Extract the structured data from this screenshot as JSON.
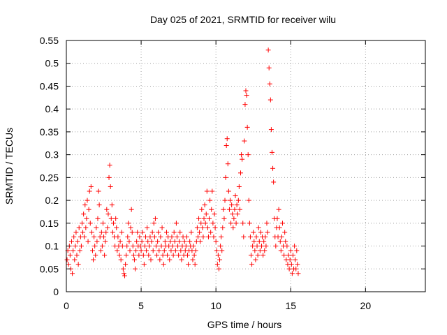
{
  "chart_data": {
    "type": "scatter",
    "title": "Day 025 of 2021, SRMTID for receiver wilu",
    "xlabel": "GPS time / hours",
    "ylabel": "SRMTID / TECUs",
    "xlim": [
      0,
      24
    ],
    "ylim": [
      0,
      0.55
    ],
    "xticks": [
      0,
      5,
      10,
      15,
      20
    ],
    "xtick_labels": [
      "0",
      "5",
      "10",
      "15",
      "20"
    ],
    "yticks": [
      0,
      0.05,
      0.1,
      0.15,
      0.2,
      0.25,
      0.3,
      0.35,
      0.4,
      0.45,
      0.5,
      0.55
    ],
    "ytick_labels": [
      "0",
      "0.05",
      "0.1",
      "0.15",
      "0.2",
      "0.25",
      "0.3",
      "0.35",
      "0.4",
      "0.45",
      "0.5",
      "0.55"
    ],
    "grid": true,
    "marker": "plus",
    "marker_color": "#ff0000",
    "series": [
      {
        "name": "SRMTID",
        "points": [
          [
            0.05,
            0.07
          ],
          [
            0.1,
            0.09
          ],
          [
            0.15,
            0.06
          ],
          [
            0.2,
            0.1
          ],
          [
            0.25,
            0.08
          ],
          [
            0.3,
            0.05
          ],
          [
            0.35,
            0.11
          ],
          [
            0.4,
            0.04
          ],
          [
            0.45,
            0.09
          ],
          [
            0.5,
            0.12
          ],
          [
            0.55,
            0.07
          ],
          [
            0.6,
            0.1
          ],
          [
            0.65,
            0.13
          ],
          [
            0.7,
            0.08
          ],
          [
            0.75,
            0.11
          ],
          [
            0.8,
            0.06
          ],
          [
            0.85,
            0.14
          ],
          [
            0.9,
            0.09
          ],
          [
            0.95,
            0.12
          ],
          [
            1.0,
            0.1
          ],
          [
            1.05,
            0.15
          ],
          [
            1.1,
            0.13
          ],
          [
            1.15,
            0.17
          ],
          [
            1.2,
            0.12
          ],
          [
            1.25,
            0.19
          ],
          [
            1.3,
            0.14
          ],
          [
            1.35,
            0.16
          ],
          [
            1.4,
            0.2
          ],
          [
            1.45,
            0.11
          ],
          [
            1.5,
            0.18
          ],
          [
            1.55,
            0.22
          ],
          [
            1.6,
            0.15
          ],
          [
            1.65,
            0.23
          ],
          [
            1.7,
            0.13
          ],
          [
            1.75,
            0.09
          ],
          [
            1.8,
            0.07
          ],
          [
            1.85,
            0.12
          ],
          [
            1.9,
            0.1
          ],
          [
            1.95,
            0.08
          ],
          [
            2.0,
            0.14
          ],
          [
            2.05,
            0.11
          ],
          [
            2.1,
            0.16
          ],
          [
            2.15,
            0.22
          ],
          [
            2.2,
            0.19
          ],
          [
            2.25,
            0.12
          ],
          [
            2.3,
            0.09
          ],
          [
            2.35,
            0.13
          ],
          [
            2.4,
            0.1
          ],
          [
            2.45,
            0.15
          ],
          [
            2.5,
            0.12
          ],
          [
            2.55,
            0.08
          ],
          [
            2.6,
            0.11
          ],
          [
            2.65,
            0.13
          ],
          [
            2.7,
            0.18
          ],
          [
            2.75,
            0.14
          ],
          [
            2.8,
            0.17
          ],
          [
            2.85,
            0.25
          ],
          [
            2.9,
            0.277
          ],
          [
            2.95,
            0.23
          ],
          [
            3.0,
            0.16
          ],
          [
            3.05,
            0.19
          ],
          [
            3.1,
            0.13
          ],
          [
            3.15,
            0.15
          ],
          [
            3.2,
            0.12
          ],
          [
            3.25,
            0.1
          ],
          [
            3.3,
            0.16
          ],
          [
            3.35,
            0.14
          ],
          [
            3.4,
            0.09
          ],
          [
            3.45,
            0.12
          ],
          [
            3.5,
            0.1
          ],
          [
            3.55,
            0.08
          ],
          [
            3.6,
            0.11
          ],
          [
            3.65,
            0.07
          ],
          [
            3.7,
            0.13
          ],
          [
            3.75,
            0.1
          ],
          [
            3.8,
            0.05
          ],
          [
            3.85,
            0.04
          ],
          [
            3.9,
            0.035
          ],
          [
            3.95,
            0.06
          ],
          [
            4.0,
            0.08
          ],
          [
            4.05,
            0.1
          ],
          [
            4.1,
            0.12
          ],
          [
            4.15,
            0.15
          ],
          [
            4.2,
            0.11
          ],
          [
            4.25,
            0.09
          ],
          [
            4.3,
            0.14
          ],
          [
            4.35,
            0.18
          ],
          [
            4.4,
            0.13
          ],
          [
            4.45,
            0.1
          ],
          [
            4.5,
            0.08
          ],
          [
            4.55,
            0.07
          ],
          [
            4.6,
            0.05
          ],
          [
            4.65,
            0.09
          ],
          [
            4.7,
            0.11
          ],
          [
            4.75,
            0.13
          ],
          [
            4.8,
            0.1
          ],
          [
            4.85,
            0.08
          ],
          [
            4.9,
            0.12
          ],
          [
            4.95,
            0.1
          ],
          [
            5.0,
            0.09
          ],
          [
            5.05,
            0.11
          ],
          [
            5.1,
            0.13
          ],
          [
            5.15,
            0.08
          ],
          [
            5.2,
            0.06
          ],
          [
            5.25,
            0.1
          ],
          [
            5.3,
            0.12
          ],
          [
            5.35,
            0.09
          ],
          [
            5.4,
            0.14
          ],
          [
            5.45,
            0.11
          ],
          [
            5.5,
            0.08
          ],
          [
            5.55,
            0.1
          ],
          [
            5.6,
            0.12
          ],
          [
            5.65,
            0.07
          ],
          [
            5.7,
            0.11
          ],
          [
            5.75,
            0.13
          ],
          [
            5.8,
            0.09
          ],
          [
            5.85,
            0.15
          ],
          [
            5.9,
            0.12
          ],
          [
            5.95,
            0.16
          ],
          [
            6.0,
            0.1
          ],
          [
            6.05,
            0.08
          ],
          [
            6.1,
            0.11
          ],
          [
            6.15,
            0.13
          ],
          [
            6.2,
            0.09
          ],
          [
            6.25,
            0.07
          ],
          [
            6.3,
            0.12
          ],
          [
            6.35,
            0.1
          ],
          [
            6.4,
            0.14
          ],
          [
            6.45,
            0.08
          ],
          [
            6.5,
            0.06
          ],
          [
            6.55,
            0.09
          ],
          [
            6.6,
            0.11
          ],
          [
            6.65,
            0.1
          ],
          [
            6.7,
            0.13
          ],
          [
            6.75,
            0.08
          ],
          [
            6.8,
            0.12
          ],
          [
            6.85,
            0.1
          ],
          [
            6.9,
            0.07
          ],
          [
            6.95,
            0.11
          ],
          [
            7.0,
            0.09
          ],
          [
            7.05,
            0.12
          ],
          [
            7.1,
            0.1
          ],
          [
            7.15,
            0.08
          ],
          [
            7.2,
            0.13
          ],
          [
            7.25,
            0.11
          ],
          [
            7.3,
            0.09
          ],
          [
            7.35,
            0.15
          ],
          [
            7.4,
            0.12
          ],
          [
            7.45,
            0.1
          ],
          [
            7.5,
            0.08
          ],
          [
            7.55,
            0.11
          ],
          [
            7.6,
            0.13
          ],
          [
            7.65,
            0.09
          ],
          [
            7.7,
            0.07
          ],
          [
            7.75,
            0.1
          ],
          [
            7.8,
            0.12
          ],
          [
            7.85,
            0.08
          ],
          [
            7.9,
            0.11
          ],
          [
            7.95,
            0.09
          ],
          [
            8.0,
            0.1
          ],
          [
            8.05,
            0.12
          ],
          [
            8.1,
            0.08
          ],
          [
            8.15,
            0.06
          ],
          [
            8.2,
            0.09
          ],
          [
            8.25,
            0.11
          ],
          [
            8.3,
            0.1
          ],
          [
            8.35,
            0.13
          ],
          [
            8.4,
            0.09
          ],
          [
            8.45,
            0.07
          ],
          [
            8.5,
            0.1
          ],
          [
            8.55,
            0.08
          ],
          [
            8.6,
            0.06
          ],
          [
            8.65,
            0.09
          ],
          [
            8.7,
            0.11
          ],
          [
            8.75,
            0.14
          ],
          [
            8.8,
            0.12
          ],
          [
            8.85,
            0.16
          ],
          [
            8.9,
            0.13
          ],
          [
            8.95,
            0.11
          ],
          [
            9.0,
            0.15
          ],
          [
            9.05,
            0.18
          ],
          [
            9.1,
            0.14
          ],
          [
            9.15,
            0.12
          ],
          [
            9.2,
            0.16
          ],
          [
            9.25,
            0.19
          ],
          [
            9.3,
            0.15
          ],
          [
            9.35,
            0.17
          ],
          [
            9.4,
            0.22
          ],
          [
            9.45,
            0.14
          ],
          [
            9.5,
            0.12
          ],
          [
            9.55,
            0.16
          ],
          [
            9.6,
            0.2
          ],
          [
            9.65,
            0.13
          ],
          [
            9.7,
            0.18
          ],
          [
            9.75,
            0.22
          ],
          [
            9.8,
            0.15
          ],
          [
            9.85,
            0.12
          ],
          [
            9.9,
            0.17
          ],
          [
            9.95,
            0.14
          ],
          [
            10.0,
            0.11
          ],
          [
            10.05,
            0.09
          ],
          [
            10.1,
            0.06
          ],
          [
            10.15,
            0.08
          ],
          [
            10.2,
            0.05
          ],
          [
            10.25,
            0.07
          ],
          [
            10.3,
            0.1
          ],
          [
            10.35,
            0.12
          ],
          [
            10.4,
            0.09
          ],
          [
            10.45,
            0.14
          ],
          [
            10.5,
            0.18
          ],
          [
            10.55,
            0.16
          ],
          [
            10.6,
            0.2
          ],
          [
            10.65,
            0.25
          ],
          [
            10.7,
            0.32
          ],
          [
            10.75,
            0.335
          ],
          [
            10.8,
            0.28
          ],
          [
            10.85,
            0.22
          ],
          [
            10.9,
            0.18
          ],
          [
            10.95,
            0.2
          ],
          [
            11.0,
            0.15
          ],
          [
            11.05,
            0.19
          ],
          [
            11.1,
            0.17
          ],
          [
            11.15,
            0.14
          ],
          [
            11.2,
            0.16
          ],
          [
            11.25,
            0.18
          ],
          [
            11.3,
            0.21
          ],
          [
            11.35,
            0.15
          ],
          [
            11.4,
            0.19
          ],
          [
            11.45,
            0.17
          ],
          [
            11.5,
            0.2
          ],
          [
            11.55,
            0.23
          ],
          [
            11.6,
            0.18
          ],
          [
            11.65,
            0.26
          ],
          [
            11.7,
            0.3
          ],
          [
            11.75,
            0.29
          ],
          [
            11.8,
            0.15
          ],
          [
            11.85,
            0.12
          ],
          [
            11.9,
            0.33
          ],
          [
            11.95,
            0.41
          ],
          [
            12.0,
            0.44
          ],
          [
            12.05,
            0.43
          ],
          [
            12.1,
            0.36
          ],
          [
            12.15,
            0.3
          ],
          [
            12.2,
            0.2
          ],
          [
            12.25,
            0.15
          ],
          [
            12.3,
            0.12
          ],
          [
            12.35,
            0.08
          ],
          [
            12.4,
            0.06
          ],
          [
            12.45,
            0.1
          ],
          [
            12.5,
            0.13
          ],
          [
            12.55,
            0.11
          ],
          [
            12.6,
            0.09
          ],
          [
            12.65,
            0.07
          ],
          [
            12.7,
            0.12
          ],
          [
            12.75,
            0.1
          ],
          [
            12.8,
            0.08
          ],
          [
            12.85,
            0.14
          ],
          [
            12.9,
            0.11
          ],
          [
            12.95,
            0.09
          ],
          [
            13.0,
            0.13
          ],
          [
            13.05,
            0.1
          ],
          [
            13.1,
            0.12
          ],
          [
            13.15,
            0.08
          ],
          [
            13.2,
            0.11
          ],
          [
            13.25,
            0.09
          ],
          [
            13.3,
            0.12
          ],
          [
            13.35,
            0.1
          ],
          [
            13.4,
            0.15
          ],
          [
            13.45,
            0.13
          ],
          [
            13.5,
            0.529
          ],
          [
            13.55,
            0.49
          ],
          [
            13.6,
            0.455
          ],
          [
            13.65,
            0.42
          ],
          [
            13.7,
            0.355
          ],
          [
            13.75,
            0.305
          ],
          [
            13.8,
            0.27
          ],
          [
            13.85,
            0.24
          ],
          [
            13.9,
            0.16
          ],
          [
            13.95,
            0.12
          ],
          [
            14.0,
            0.1
          ],
          [
            14.05,
            0.14
          ],
          [
            14.1,
            0.16
          ],
          [
            14.15,
            0.12
          ],
          [
            14.2,
            0.18
          ],
          [
            14.25,
            0.14
          ],
          [
            14.3,
            0.11
          ],
          [
            14.35,
            0.09
          ],
          [
            14.4,
            0.12
          ],
          [
            14.45,
            0.15
          ],
          [
            14.5,
            0.1
          ],
          [
            14.55,
            0.08
          ],
          [
            14.6,
            0.13
          ],
          [
            14.65,
            0.11
          ],
          [
            14.7,
            0.07
          ],
          [
            14.75,
            0.1
          ],
          [
            14.8,
            0.06
          ],
          [
            14.85,
            0.08
          ],
          [
            14.9,
            0.05
          ],
          [
            14.95,
            0.07
          ],
          [
            15.0,
            0.09
          ],
          [
            15.05,
            0.06
          ],
          [
            15.1,
            0.04
          ],
          [
            15.15,
            0.08
          ],
          [
            15.2,
            0.05
          ],
          [
            15.25,
            0.1
          ],
          [
            15.3,
            0.07
          ],
          [
            15.35,
            0.05
          ],
          [
            15.4,
            0.09
          ],
          [
            15.45,
            0.06
          ],
          [
            15.5,
            0.04
          ]
        ]
      }
    ]
  }
}
